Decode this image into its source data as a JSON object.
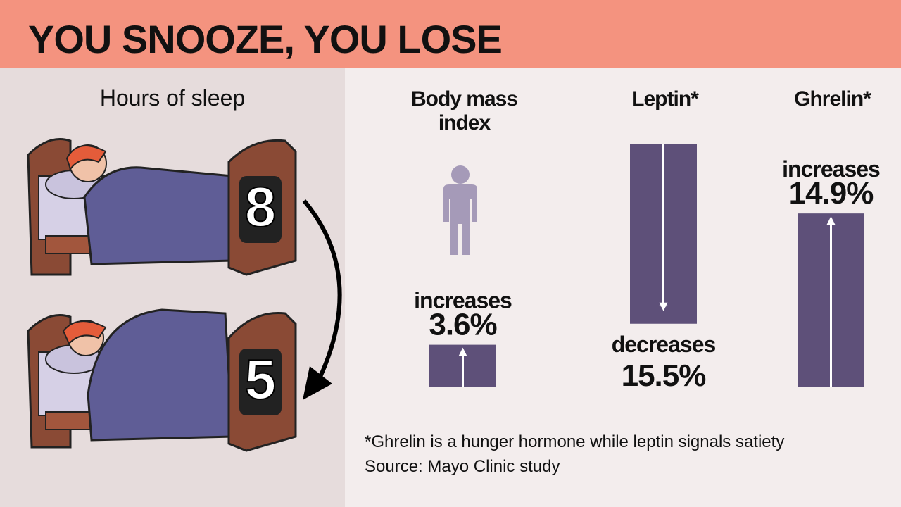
{
  "header": {
    "title": "YOU SNOOZE, YOU LOSE"
  },
  "sleep": {
    "label": "Hours of sleep",
    "before": 8,
    "after": 5
  },
  "metrics": [
    {
      "name": "Body mass",
      "name_line2": "index",
      "change": "increases",
      "value": 3.6,
      "value_label": "3.6%"
    },
    {
      "name": "Leptin*",
      "change": "decreases",
      "value": 15.5,
      "value_label": "15.5%"
    },
    {
      "name": "Ghrelin*",
      "change": "increases",
      "value": 14.9,
      "value_label": "14.9%"
    }
  ],
  "footnote": "*Ghrelin is a hunger hormone while leptin signals satiety",
  "source": "Source: Mayo Clinic study"
}
